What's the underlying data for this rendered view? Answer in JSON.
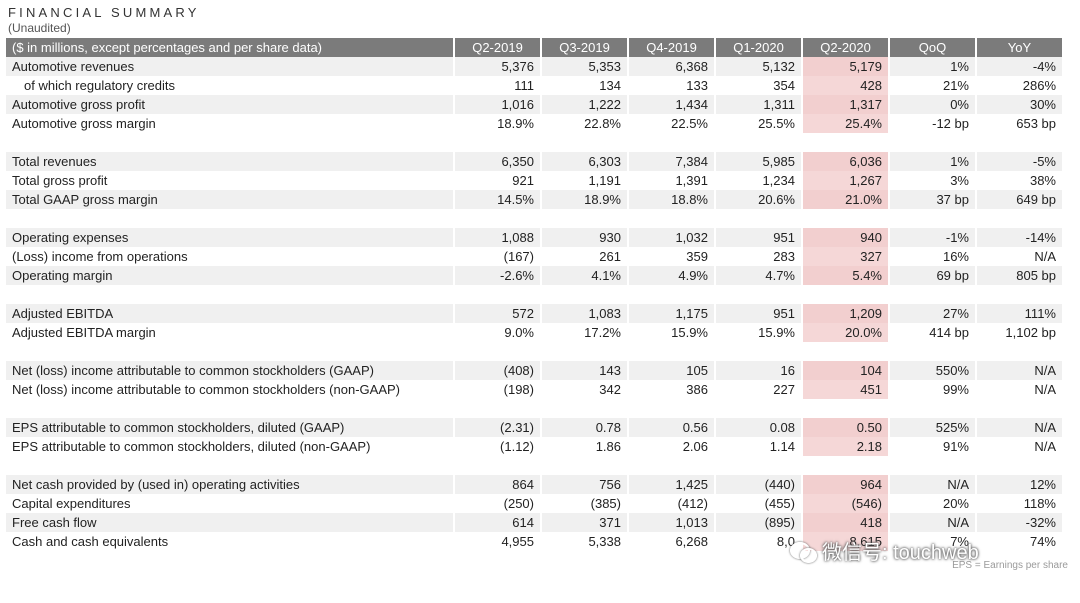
{
  "title": "FINANCIAL SUMMARY",
  "subtitle": "(Unaudited)",
  "header": {
    "label": "($ in millions, except percentages and per share data)",
    "cols": [
      "Q2-2019",
      "Q3-2019",
      "Q4-2019",
      "Q1-2020",
      "Q2-2020",
      "QoQ",
      "YoY"
    ]
  },
  "groups": [
    [
      {
        "label": "Automotive revenues",
        "values": [
          "5,376",
          "5,353",
          "6,368",
          "5,132",
          "5,179",
          "1%",
          "-4%"
        ]
      },
      {
        "label": "   of which regulatory credits",
        "values": [
          "111",
          "134",
          "133",
          "354",
          "428",
          "21%",
          "286%"
        ]
      },
      {
        "label": "Automotive gross profit",
        "values": [
          "1,016",
          "1,222",
          "1,434",
          "1,311",
          "1,317",
          "0%",
          "30%"
        ]
      },
      {
        "label": "Automotive gross margin",
        "values": [
          "18.9%",
          "22.8%",
          "22.5%",
          "25.5%",
          "25.4%",
          "-12 bp",
          "653 bp"
        ]
      }
    ],
    [
      {
        "label": "Total revenues",
        "values": [
          "6,350",
          "6,303",
          "7,384",
          "5,985",
          "6,036",
          "1%",
          "-5%"
        ]
      },
      {
        "label": "Total gross profit",
        "values": [
          "921",
          "1,191",
          "1,391",
          "1,234",
          "1,267",
          "3%",
          "38%"
        ]
      },
      {
        "label": "Total GAAP gross margin",
        "values": [
          "14.5%",
          "18.9%",
          "18.8%",
          "20.6%",
          "21.0%",
          "37 bp",
          "649 bp"
        ]
      }
    ],
    [
      {
        "label": "Operating expenses",
        "values": [
          "1,088",
          "930",
          "1,032",
          "951",
          "940",
          "-1%",
          "-14%"
        ]
      },
      {
        "label": "(Loss) income from operations",
        "values": [
          "(167)",
          "261",
          "359",
          "283",
          "327",
          "16%",
          "N/A"
        ]
      },
      {
        "label": "Operating margin",
        "values": [
          "-2.6%",
          "4.1%",
          "4.9%",
          "4.7%",
          "5.4%",
          "69 bp",
          "805 bp"
        ]
      }
    ],
    [
      {
        "label": "Adjusted EBITDA",
        "values": [
          "572",
          "1,083",
          "1,175",
          "951",
          "1,209",
          "27%",
          "111%"
        ]
      },
      {
        "label": "Adjusted EBITDA margin",
        "values": [
          "9.0%",
          "17.2%",
          "15.9%",
          "15.9%",
          "20.0%",
          "414 bp",
          "1,102 bp"
        ]
      }
    ],
    [
      {
        "label": "Net (loss) income attributable to common stockholders (GAAP)",
        "values": [
          "(408)",
          "143",
          "105",
          "16",
          "104",
          "550%",
          "N/A"
        ]
      },
      {
        "label": "Net (loss) income attributable to common stockholders (non-GAAP)",
        "values": [
          "(198)",
          "342",
          "386",
          "227",
          "451",
          "99%",
          "N/A"
        ]
      }
    ],
    [
      {
        "label": "EPS attributable to common stockholders, diluted (GAAP)",
        "values": [
          "(2.31)",
          "0.78",
          "0.56",
          "0.08",
          "0.50",
          "525%",
          "N/A"
        ]
      },
      {
        "label": "EPS attributable to common stockholders, diluted (non-GAAP)",
        "values": [
          "(1.12)",
          "1.86",
          "2.06",
          "1.14",
          "2.18",
          "91%",
          "N/A"
        ]
      }
    ],
    [
      {
        "label": "Net cash provided by (used in) operating activities",
        "values": [
          "864",
          "756",
          "1,425",
          "(440)",
          "964",
          "N/A",
          "12%"
        ]
      },
      {
        "label": "Capital expenditures",
        "values": [
          "(250)",
          "(385)",
          "(412)",
          "(455)",
          "(546)",
          "20%",
          "118%"
        ]
      },
      {
        "label": "Free cash flow",
        "values": [
          "614",
          "371",
          "1,013",
          "(895)",
          "418",
          "N/A",
          "-32%"
        ]
      },
      {
        "label": "Cash and cash equivalents",
        "values": [
          "4,955",
          "5,338",
          "6,268",
          "8,0",
          "8,615",
          "7%",
          "74%"
        ]
      }
    ]
  ],
  "footer": "EPS = Earnings per share",
  "watermark": "微信号: touchweb"
}
